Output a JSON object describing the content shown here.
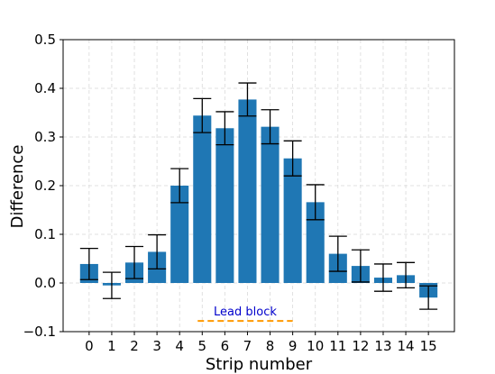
{
  "chart_data": {
    "type": "bar",
    "categories": [
      "0",
      "1",
      "2",
      "3",
      "4",
      "5",
      "6",
      "7",
      "8",
      "9",
      "10",
      "11",
      "12",
      "13",
      "14",
      "15"
    ],
    "values": [
      0.039,
      -0.005,
      0.042,
      0.064,
      0.2,
      0.344,
      0.318,
      0.377,
      0.321,
      0.256,
      0.166,
      0.06,
      0.035,
      0.011,
      0.016,
      -0.03
    ],
    "errors": [
      0.032,
      0.027,
      0.033,
      0.035,
      0.035,
      0.035,
      0.034,
      0.034,
      0.035,
      0.036,
      0.036,
      0.036,
      0.033,
      0.028,
      0.026,
      0.024
    ],
    "xlabel": "Strip number",
    "ylabel": "Difference",
    "ylim": [
      -0.1,
      0.5
    ],
    "yticks": [
      -0.1,
      0.0,
      0.1,
      0.2,
      0.3,
      0.4,
      0.5
    ],
    "ytick_labels": [
      "−0.1",
      "0.0",
      "0.1",
      "0.2",
      "0.3",
      "0.4",
      "0.5"
    ],
    "grid": true,
    "bar_color": "#1f77b4",
    "annotation": {
      "text": "Lead block",
      "text_color": "#0000cc",
      "line_color": "#ff9900",
      "x_range": [
        4.8,
        9.0
      ],
      "y": -0.078
    }
  }
}
